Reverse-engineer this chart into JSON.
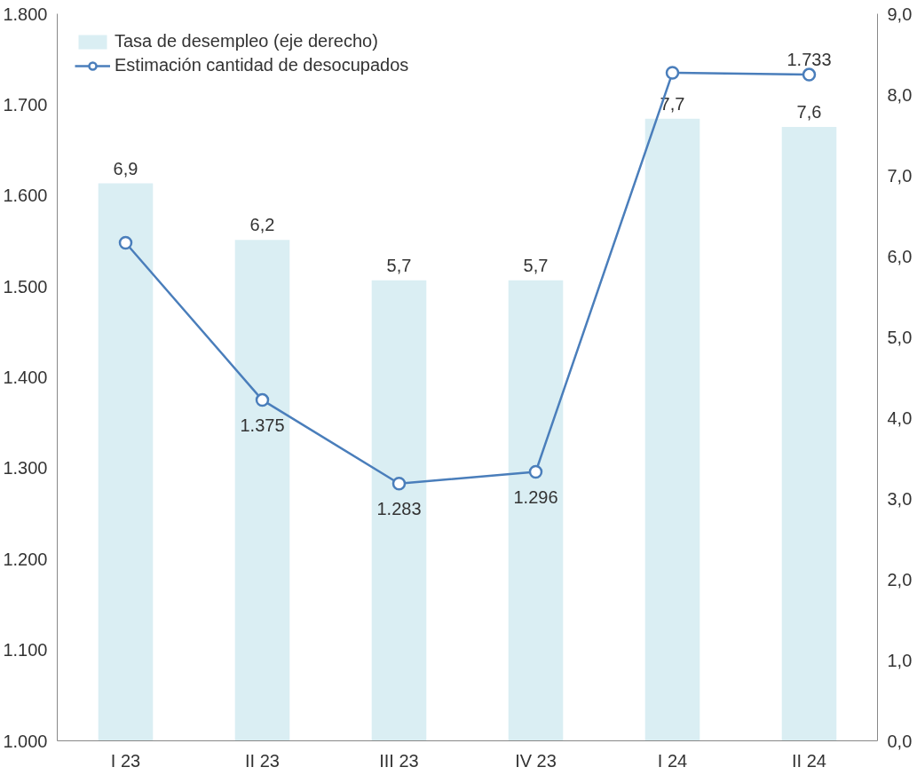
{
  "chart_data": {
    "type": "bar",
    "categories": [
      "I 23",
      "II 23",
      "III 23",
      "IV 23",
      "I 24",
      "II 24"
    ],
    "series": [
      {
        "name": "Tasa de desempleo (eje derecho)",
        "axis": "y2",
        "color": "#daeef3",
        "values": [
          6.9,
          6.2,
          5.7,
          5.7,
          7.7,
          7.6
        ],
        "value_labels": [
          "6,9",
          "6,2",
          "5,7",
          "5,7",
          "7,7",
          "7,6"
        ]
      },
      {
        "name": "Estimación cantidad de desocupados",
        "type": "line",
        "color": "#4a7ebb",
        "marker": "circle",
        "values": [
          1548,
          1375,
          1283,
          1296,
          1735,
          1733
        ],
        "value_labels": [
          null,
          "1.375",
          "1.283",
          "1.296",
          null,
          "1.733"
        ]
      }
    ],
    "ylim": [
      1000,
      1800
    ],
    "yticks": [
      {
        "value": 1000,
        "label": "1.000"
      },
      {
        "value": 1100,
        "label": "1.100"
      },
      {
        "value": 1200,
        "label": "1.200"
      },
      {
        "value": 1300,
        "label": "1.300"
      },
      {
        "value": 1400,
        "label": "1.400"
      },
      {
        "value": 1500,
        "label": "1.500"
      },
      {
        "value": 1600,
        "label": "1.600"
      },
      {
        "value": 1700,
        "label": "1.700"
      },
      {
        "value": 1800,
        "label": "1.800"
      }
    ],
    "y2lim": [
      0,
      9
    ],
    "y2ticks": [
      {
        "value": 0,
        "label": "0,0"
      },
      {
        "value": 1,
        "label": "1,0"
      },
      {
        "value": 2,
        "label": "2,0"
      },
      {
        "value": 3,
        "label": "3,0"
      },
      {
        "value": 4,
        "label": "4,0"
      },
      {
        "value": 5,
        "label": "5,0"
      },
      {
        "value": 6,
        "label": "6,0"
      },
      {
        "value": 7,
        "label": "7,0"
      },
      {
        "value": 8,
        "label": "8,0"
      },
      {
        "value": 9,
        "label": "9,0"
      }
    ],
    "grid": false,
    "legend": "top left"
  }
}
